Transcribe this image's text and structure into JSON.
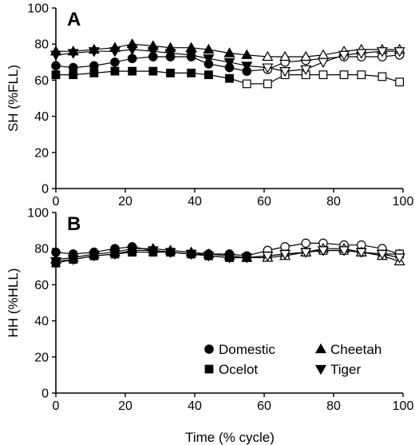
{
  "figure": {
    "xlabel": "Time (% cycle)"
  },
  "legend": {
    "entries": [
      {
        "name": "Domestic",
        "marker": "circle"
      },
      {
        "name": "Ocelot",
        "marker": "square"
      },
      {
        "name": "Cheetah",
        "marker": "triangle-up"
      },
      {
        "name": "Tiger",
        "marker": "triangle-down"
      }
    ]
  },
  "chart_data": [
    {
      "type": "line",
      "panel": "A",
      "ylabel": "SH (%FLL)",
      "xlabel": "Time (% cycle)",
      "xlim": [
        0,
        100
      ],
      "ylim": [
        0,
        100
      ],
      "xticks": [
        "0",
        "20",
        "40",
        "60",
        "80",
        "100"
      ],
      "yticks": [
        "0",
        "20",
        "40",
        "60",
        "80",
        "100"
      ],
      "grid": false,
      "legend": "none",
      "colors": {
        "marker": "#000000",
        "line": "#000000",
        "open_fill": "#ffffff"
      },
      "series": [
        {
          "name": "Domestic",
          "marker": "circle",
          "points": [
            {
              "x": 0,
              "y": 68,
              "open": false
            },
            {
              "x": 5,
              "y": 67,
              "open": false
            },
            {
              "x": 11,
              "y": 68,
              "open": false
            },
            {
              "x": 17,
              "y": 70,
              "open": false
            },
            {
              "x": 22,
              "y": 72,
              "open": false
            },
            {
              "x": 28,
              "y": 73,
              "open": false
            },
            {
              "x": 33,
              "y": 73,
              "open": false
            },
            {
              "x": 39,
              "y": 73,
              "open": false
            },
            {
              "x": 44,
              "y": 69,
              "open": false
            },
            {
              "x": 50,
              "y": 67,
              "open": false
            },
            {
              "x": 55,
              "y": 65,
              "open": false
            },
            {
              "x": 61,
              "y": 66,
              "open": true
            },
            {
              "x": 66,
              "y": 70,
              "open": true
            },
            {
              "x": 72,
              "y": 71,
              "open": true
            },
            {
              "x": 77,
              "y": 72,
              "open": true
            },
            {
              "x": 83,
              "y": 73,
              "open": true
            },
            {
              "x": 88,
              "y": 73,
              "open": true
            },
            {
              "x": 94,
              "y": 73,
              "open": true
            },
            {
              "x": 99,
              "y": 74,
              "open": true
            }
          ]
        },
        {
          "name": "Ocelot",
          "marker": "square",
          "points": [
            {
              "x": 0,
              "y": 63,
              "open": false
            },
            {
              "x": 5,
              "y": 63,
              "open": false
            },
            {
              "x": 11,
              "y": 64,
              "open": false
            },
            {
              "x": 17,
              "y": 65,
              "open": false
            },
            {
              "x": 22,
              "y": 65,
              "open": false
            },
            {
              "x": 28,
              "y": 65,
              "open": false
            },
            {
              "x": 33,
              "y": 64,
              "open": false
            },
            {
              "x": 39,
              "y": 64,
              "open": false
            },
            {
              "x": 44,
              "y": 63,
              "open": false
            },
            {
              "x": 50,
              "y": 61,
              "open": false
            },
            {
              "x": 55,
              "y": 58,
              "open": true
            },
            {
              "x": 61,
              "y": 58,
              "open": true
            },
            {
              "x": 66,
              "y": 63,
              "open": true
            },
            {
              "x": 72,
              "y": 63,
              "open": true
            },
            {
              "x": 77,
              "y": 63,
              "open": true
            },
            {
              "x": 83,
              "y": 63,
              "open": true
            },
            {
              "x": 88,
              "y": 63,
              "open": true
            },
            {
              "x": 94,
              "y": 62,
              "open": true
            },
            {
              "x": 99,
              "y": 59,
              "open": true
            }
          ]
        },
        {
          "name": "Cheetah",
          "marker": "triangle-up",
          "points": [
            {
              "x": 0,
              "y": 76,
              "open": false
            },
            {
              "x": 5,
              "y": 76,
              "open": false
            },
            {
              "x": 11,
              "y": 77,
              "open": false
            },
            {
              "x": 17,
              "y": 78,
              "open": false
            },
            {
              "x": 22,
              "y": 80,
              "open": false
            },
            {
              "x": 28,
              "y": 79,
              "open": false
            },
            {
              "x": 33,
              "y": 78,
              "open": false
            },
            {
              "x": 39,
              "y": 78,
              "open": false
            },
            {
              "x": 44,
              "y": 77,
              "open": false
            },
            {
              "x": 50,
              "y": 75,
              "open": false
            },
            {
              "x": 55,
              "y": 74,
              "open": false
            },
            {
              "x": 61,
              "y": 73,
              "open": true
            },
            {
              "x": 66,
              "y": 73,
              "open": true
            },
            {
              "x": 72,
              "y": 73,
              "open": true
            },
            {
              "x": 77,
              "y": 74,
              "open": true
            },
            {
              "x": 83,
              "y": 76,
              "open": true
            },
            {
              "x": 88,
              "y": 77,
              "open": true
            },
            {
              "x": 94,
              "y": 77,
              "open": true
            },
            {
              "x": 99,
              "y": 77,
              "open": true
            }
          ]
        },
        {
          "name": "Tiger",
          "marker": "triangle-down",
          "points": [
            {
              "x": 0,
              "y": 74,
              "open": false
            },
            {
              "x": 5,
              "y": 75,
              "open": false
            },
            {
              "x": 11,
              "y": 76,
              "open": false
            },
            {
              "x": 17,
              "y": 76,
              "open": false
            },
            {
              "x": 22,
              "y": 77,
              "open": false
            },
            {
              "x": 28,
              "y": 76,
              "open": false
            },
            {
              "x": 33,
              "y": 75,
              "open": false
            },
            {
              "x": 39,
              "y": 74,
              "open": false
            },
            {
              "x": 44,
              "y": 72,
              "open": false
            },
            {
              "x": 50,
              "y": 70,
              "open": false
            },
            {
              "x": 55,
              "y": 68,
              "open": false
            },
            {
              "x": 61,
              "y": 67,
              "open": true
            },
            {
              "x": 66,
              "y": 65,
              "open": true
            },
            {
              "x": 72,
              "y": 66,
              "open": true
            },
            {
              "x": 77,
              "y": 70,
              "open": true
            },
            {
              "x": 83,
              "y": 74,
              "open": true
            },
            {
              "x": 88,
              "y": 75,
              "open": true
            },
            {
              "x": 94,
              "y": 76,
              "open": true
            },
            {
              "x": 99,
              "y": 76,
              "open": true
            }
          ]
        }
      ]
    },
    {
      "type": "line",
      "panel": "B",
      "ylabel": "HH (%HLL)",
      "xlabel": "Time (% cycle)",
      "xlim": [
        0,
        100
      ],
      "ylim": [
        0,
        100
      ],
      "xticks": [
        "0",
        "20",
        "40",
        "60",
        "80",
        "100"
      ],
      "yticks": [
        "0",
        "20",
        "40",
        "60",
        "80",
        "100"
      ],
      "grid": false,
      "legend": "bottom-right",
      "colors": {
        "marker": "#000000",
        "line": "#000000",
        "open_fill": "#ffffff"
      },
      "series": [
        {
          "name": "Domestic",
          "marker": "circle",
          "points": [
            {
              "x": 0,
              "y": 78,
              "open": false
            },
            {
              "x": 5,
              "y": 77,
              "open": false
            },
            {
              "x": 11,
              "y": 78,
              "open": false
            },
            {
              "x": 17,
              "y": 80,
              "open": false
            },
            {
              "x": 22,
              "y": 81,
              "open": false
            },
            {
              "x": 28,
              "y": 79,
              "open": false
            },
            {
              "x": 33,
              "y": 78,
              "open": false
            },
            {
              "x": 39,
              "y": 77,
              "open": false
            },
            {
              "x": 44,
              "y": 77,
              "open": false
            },
            {
              "x": 50,
              "y": 77,
              "open": false
            },
            {
              "x": 55,
              "y": 76,
              "open": false
            },
            {
              "x": 61,
              "y": 79,
              "open": true
            },
            {
              "x": 66,
              "y": 81,
              "open": true
            },
            {
              "x": 72,
              "y": 83,
              "open": true
            },
            {
              "x": 77,
              "y": 83,
              "open": true
            },
            {
              "x": 83,
              "y": 82,
              "open": true
            },
            {
              "x": 88,
              "y": 82,
              "open": true
            },
            {
              "x": 94,
              "y": 80,
              "open": true
            },
            {
              "x": 99,
              "y": 77,
              "open": true
            }
          ]
        },
        {
          "name": "Ocelot",
          "marker": "square",
          "points": [
            {
              "x": 0,
              "y": 72,
              "open": false
            },
            {
              "x": 5,
              "y": 74,
              "open": false
            },
            {
              "x": 11,
              "y": 76,
              "open": false
            },
            {
              "x": 17,
              "y": 77,
              "open": false
            },
            {
              "x": 22,
              "y": 78,
              "open": false
            },
            {
              "x": 28,
              "y": 78,
              "open": false
            },
            {
              "x": 33,
              "y": 78,
              "open": false
            },
            {
              "x": 39,
              "y": 77,
              "open": false
            },
            {
              "x": 44,
              "y": 76,
              "open": false
            },
            {
              "x": 50,
              "y": 75,
              "open": false
            },
            {
              "x": 55,
              "y": 75,
              "open": false
            },
            {
              "x": 61,
              "y": 76,
              "open": true
            },
            {
              "x": 66,
              "y": 77,
              "open": true
            },
            {
              "x": 72,
              "y": 78,
              "open": true
            },
            {
              "x": 77,
              "y": 79,
              "open": true
            },
            {
              "x": 83,
              "y": 79,
              "open": true
            },
            {
              "x": 88,
              "y": 78,
              "open": true
            },
            {
              "x": 94,
              "y": 77,
              "open": true
            },
            {
              "x": 99,
              "y": 77,
              "open": true
            }
          ]
        },
        {
          "name": "Cheetah",
          "marker": "triangle-up",
          "points": [
            {
              "x": 0,
              "y": 74,
              "open": false
            },
            {
              "x": 5,
              "y": 75,
              "open": false
            },
            {
              "x": 11,
              "y": 77,
              "open": false
            },
            {
              "x": 17,
              "y": 78,
              "open": false
            },
            {
              "x": 22,
              "y": 80,
              "open": false
            },
            {
              "x": 28,
              "y": 80,
              "open": false
            },
            {
              "x": 33,
              "y": 79,
              "open": false
            },
            {
              "x": 39,
              "y": 78,
              "open": false
            },
            {
              "x": 44,
              "y": 77,
              "open": false
            },
            {
              "x": 50,
              "y": 76,
              "open": false
            },
            {
              "x": 55,
              "y": 75,
              "open": false
            },
            {
              "x": 61,
              "y": 75,
              "open": true
            },
            {
              "x": 66,
              "y": 76,
              "open": true
            },
            {
              "x": 72,
              "y": 78,
              "open": true
            },
            {
              "x": 77,
              "y": 80,
              "open": true
            },
            {
              "x": 83,
              "y": 80,
              "open": true
            },
            {
              "x": 88,
              "y": 78,
              "open": true
            },
            {
              "x": 94,
              "y": 76,
              "open": true
            },
            {
              "x": 99,
              "y": 73,
              "open": true
            }
          ]
        },
        {
          "name": "Tiger",
          "marker": "triangle-down",
          "points": [
            {
              "x": 0,
              "y": 73,
              "open": false
            },
            {
              "x": 5,
              "y": 74,
              "open": false
            },
            {
              "x": 11,
              "y": 76,
              "open": false
            },
            {
              "x": 17,
              "y": 77,
              "open": false
            },
            {
              "x": 22,
              "y": 79,
              "open": false
            },
            {
              "x": 28,
              "y": 79,
              "open": false
            },
            {
              "x": 33,
              "y": 78,
              "open": false
            },
            {
              "x": 39,
              "y": 77,
              "open": false
            },
            {
              "x": 44,
              "y": 76,
              "open": false
            },
            {
              "x": 50,
              "y": 75,
              "open": false
            },
            {
              "x": 55,
              "y": 75,
              "open": false
            },
            {
              "x": 61,
              "y": 76,
              "open": true
            },
            {
              "x": 66,
              "y": 77,
              "open": true
            },
            {
              "x": 72,
              "y": 78,
              "open": true
            },
            {
              "x": 77,
              "y": 79,
              "open": true
            },
            {
              "x": 83,
              "y": 79,
              "open": true
            },
            {
              "x": 88,
              "y": 78,
              "open": true
            },
            {
              "x": 94,
              "y": 77,
              "open": true
            },
            {
              "x": 99,
              "y": 75,
              "open": true
            }
          ]
        }
      ]
    }
  ]
}
